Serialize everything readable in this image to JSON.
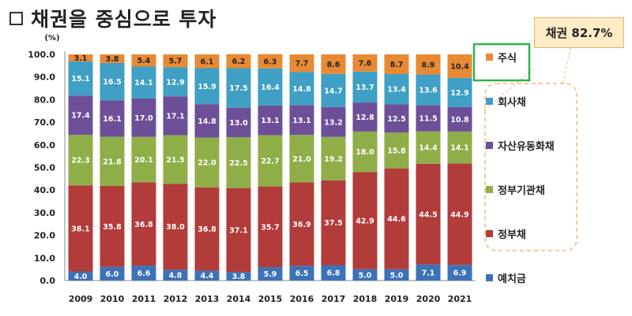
{
  "header": {
    "title": "채권을 중심으로 투자"
  },
  "callout": {
    "text": "채권 82.7%"
  },
  "colors": {
    "예치금": "#3d72b8",
    "정부채": "#b23c3a",
    "정부기관채": "#8fae48",
    "자산유동화채": "#6d4f98",
    "회사채": "#3f9fc4",
    "주식": "#e88a34",
    "highlight": "#2db34a",
    "dashed": "#f5b57a"
  },
  "chart_data": {
    "type": "bar",
    "stacked": true,
    "ylabel": "(%)",
    "ylim": [
      0,
      100
    ],
    "yticks": [
      "0.0",
      "10.0",
      "20.0",
      "30.0",
      "40.0",
      "50.0",
      "60.0",
      "70.0",
      "80.0",
      "90.0",
      "100.0"
    ],
    "categories": [
      "2009",
      "2010",
      "2011",
      "2012",
      "2013",
      "2014",
      "2015",
      "2016",
      "2017",
      "2018",
      "2019",
      "2020",
      "2021"
    ],
    "series": [
      {
        "name": "예치금",
        "values": [
          4.0,
          6.0,
          6.6,
          4.8,
          4.4,
          3.8,
          5.9,
          6.5,
          6.8,
          5.0,
          5.0,
          7.1,
          6.9
        ]
      },
      {
        "name": "정부채",
        "values": [
          38.1,
          35.8,
          36.8,
          38.0,
          36.8,
          37.1,
          35.7,
          36.9,
          37.5,
          42.9,
          44.6,
          44.5,
          44.9
        ]
      },
      {
        "name": "정부기관채",
        "values": [
          22.3,
          21.8,
          20.1,
          21.5,
          22.0,
          22.5,
          22.7,
          21.0,
          19.2,
          18.0,
          15.8,
          14.4,
          14.1
        ]
      },
      {
        "name": "자산유동화채",
        "values": [
          17.4,
          16.1,
          17.0,
          17.1,
          14.8,
          13.0,
          13.1,
          13.1,
          13.2,
          12.8,
          12.5,
          11.5,
          10.8
        ]
      },
      {
        "name": "회사채",
        "values": [
          15.1,
          16.5,
          14.1,
          12.9,
          15.9,
          17.5,
          16.4,
          14.8,
          14.7,
          13.7,
          13.4,
          13.6,
          12.9
        ]
      },
      {
        "name": "주식",
        "values": [
          3.1,
          3.8,
          5.4,
          5.7,
          6.1,
          6.2,
          6.3,
          7.7,
          8.6,
          7.6,
          8.7,
          8.9,
          10.4
        ]
      }
    ],
    "legend": [
      "주식",
      "회사채",
      "자산유동화채",
      "정부기관채",
      "정부채",
      "예치금"
    ],
    "legend_position": "right",
    "grid": false
  }
}
